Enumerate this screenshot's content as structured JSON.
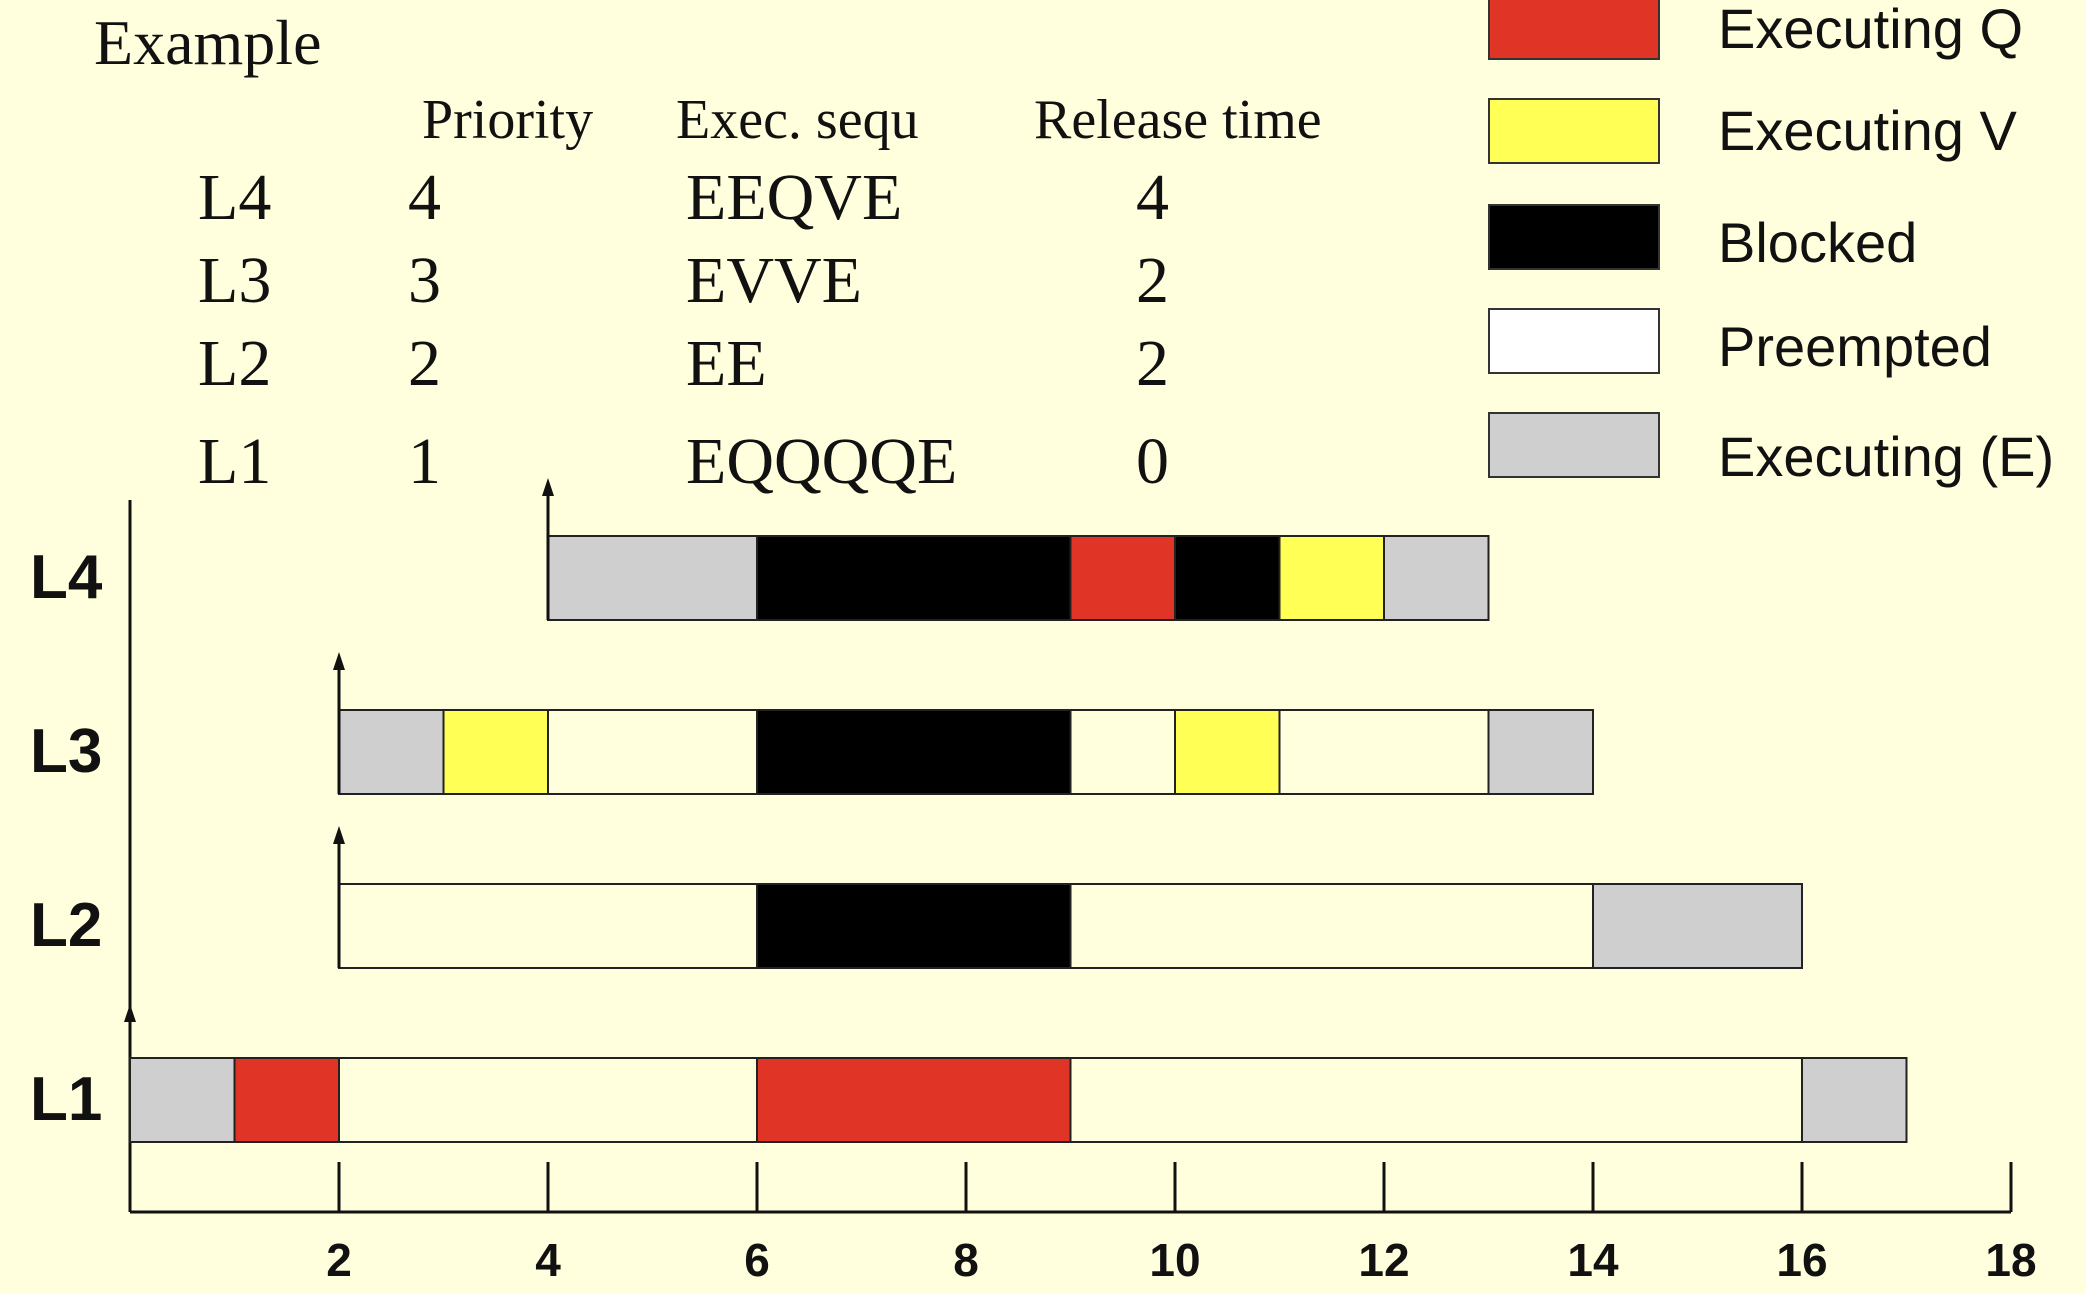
{
  "title": "Example",
  "table": {
    "headers": [
      "Priority",
      "Exec. sequ",
      "Release time"
    ],
    "rows": [
      {
        "task": "L4",
        "priority": "4",
        "sequence": "EEQVE",
        "release": "4"
      },
      {
        "task": "L3",
        "priority": "3",
        "sequence": "EVVE",
        "release": "2"
      },
      {
        "task": "L2",
        "priority": "2",
        "sequence": "EE",
        "release": "2"
      },
      {
        "task": "L1",
        "priority": "1",
        "sequence": "EQQQQE",
        "release": "0"
      }
    ]
  },
  "legend": [
    {
      "label": "Executing Q",
      "color": "#e03426"
    },
    {
      "label": "Executing V",
      "color": "#ffff55"
    },
    {
      "label": "Blocked",
      "color": "#000000"
    },
    {
      "label": "Preempted",
      "color": "#ffffff"
    },
    {
      "label": "Executing (E)",
      "color": "#cfcfcf"
    }
  ],
  "colors": {
    "Q": "#e03426",
    "V": "#ffff55",
    "B": "#000000",
    "P": "#ffffdd",
    "E": "#cfcfcf",
    "background": "#ffffdd"
  },
  "chart_data": {
    "type": "gantt",
    "x_ticks": [
      2,
      4,
      6,
      8,
      10,
      12,
      14,
      16,
      18
    ],
    "xlim": [
      0,
      18
    ],
    "tasks": [
      {
        "name": "L4",
        "release": 4,
        "segments": [
          {
            "start": 4,
            "end": 6,
            "state": "E"
          },
          {
            "start": 6,
            "end": 9,
            "state": "B"
          },
          {
            "start": 9,
            "end": 10,
            "state": "Q"
          },
          {
            "start": 10,
            "end": 11,
            "state": "B"
          },
          {
            "start": 11,
            "end": 12,
            "state": "V"
          },
          {
            "start": 12,
            "end": 13,
            "state": "E"
          }
        ]
      },
      {
        "name": "L3",
        "release": 2,
        "segments": [
          {
            "start": 2,
            "end": 3,
            "state": "E"
          },
          {
            "start": 3,
            "end": 4,
            "state": "V"
          },
          {
            "start": 4,
            "end": 6,
            "state": "P"
          },
          {
            "start": 6,
            "end": 9,
            "state": "B"
          },
          {
            "start": 9,
            "end": 10,
            "state": "P"
          },
          {
            "start": 10,
            "end": 11,
            "state": "V"
          },
          {
            "start": 11,
            "end": 13,
            "state": "P"
          },
          {
            "start": 13,
            "end": 14,
            "state": "E"
          }
        ]
      },
      {
        "name": "L2",
        "release": 2,
        "segments": [
          {
            "start": 2,
            "end": 6,
            "state": "P"
          },
          {
            "start": 6,
            "end": 9,
            "state": "B"
          },
          {
            "start": 9,
            "end": 14,
            "state": "P"
          },
          {
            "start": 14,
            "end": 16,
            "state": "E"
          }
        ]
      },
      {
        "name": "L1",
        "release": 0,
        "segments": [
          {
            "start": 0,
            "end": 1,
            "state": "E"
          },
          {
            "start": 1,
            "end": 2,
            "state": "Q"
          },
          {
            "start": 2,
            "end": 6,
            "state": "P"
          },
          {
            "start": 6,
            "end": 9,
            "state": "Q"
          },
          {
            "start": 9,
            "end": 16,
            "state": "P"
          },
          {
            "start": 16,
            "end": 17,
            "state": "E"
          }
        ]
      }
    ]
  }
}
